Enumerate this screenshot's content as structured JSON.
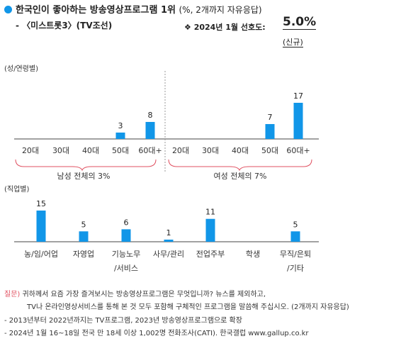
{
  "header": {
    "title": "한국인이 좋아하는 방송영상프로그램 1위",
    "title_note": "(%, 2개까지 자유응답)",
    "subtitle": "- 〈미스트롯3〉(TV조선)",
    "preference_label": "❖  2024년 1월 선호도:",
    "preference_value": "5.0%",
    "preference_note": "(신규)"
  },
  "chart_data": [
    {
      "type": "bar",
      "label": "(성/연령별)",
      "color": "#1196e8",
      "categories": [
        "20대",
        "30대",
        "40대",
        "50대",
        "60대+",
        "20대",
        "30대",
        "40대",
        "50대",
        "60대+"
      ],
      "groups": [
        {
          "name": "남성 전체의 3%",
          "categories": [
            "20대",
            "30대",
            "40대",
            "50대",
            "60대+"
          ],
          "values": [
            null,
            null,
            null,
            3,
            8
          ]
        },
        {
          "name": "여성 전체의 7%",
          "categories": [
            "20대",
            "30대",
            "40대",
            "50대",
            "60대+"
          ],
          "values": [
            null,
            null,
            null,
            7,
            17
          ]
        }
      ]
    },
    {
      "type": "bar",
      "label": "(직업별)",
      "color": "#1196e8",
      "categories": [
        "농/임/어업",
        "자영업",
        "기능노무/서비스",
        "사무/관리",
        "전업주부",
        "학생",
        "무직/은퇴/기타"
      ],
      "category_lines": [
        [
          "농/임/어업"
        ],
        [
          "자영업"
        ],
        [
          "기능노무",
          "/서비스"
        ],
        [
          "사무/관리"
        ],
        [
          "전업주부"
        ],
        [
          "학생"
        ],
        [
          "무직/은퇴",
          "/기타"
        ]
      ],
      "values": [
        15,
        5,
        6,
        1,
        11,
        null,
        5
      ]
    }
  ],
  "footer": {
    "question_label": "질문)",
    "question_line1": "귀하께서 요즘 가장 즐겨보시는 방송영상프로그램은 무엇입니까? 뉴스를 제외하고,",
    "question_line2": "TV나 온라인영상서비스를 통해 본 것 모두 포함해 구체적인 프로그램을 말씀해 주십시오. (2개까지 자유응답)",
    "note1": "- 2013년부터 2022년까지는 TV프로그램, 2023년 방송영상프로그램으로 확장",
    "note2": "- 2024년 1월 16~18일 전국 만 18세 이상 1,002명 전화조사(CATI). 한국갤럽 www.gallup.co.kr"
  }
}
